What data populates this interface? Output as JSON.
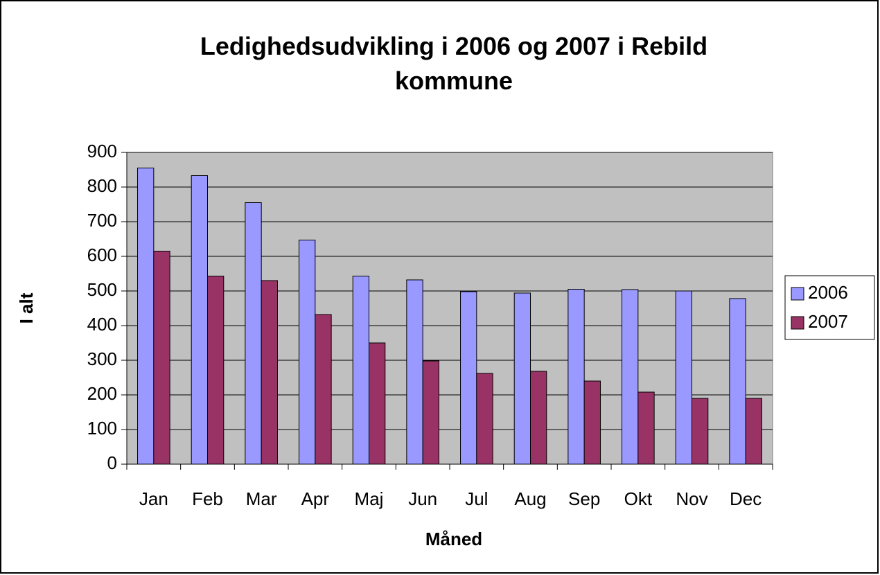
{
  "chart_data": {
    "type": "bar",
    "title": "Ledighedsudvikling i 2006 og 2007 i Rebild kommune",
    "x_label": "Måned",
    "y_label": "I alt",
    "categories": [
      "Jan",
      "Feb",
      "Mar",
      "Apr",
      "Maj",
      "Jun",
      "Jul",
      "Aug",
      "Sep",
      "Okt",
      "Nov",
      "Dec"
    ],
    "series": [
      {
        "name": "2006",
        "color": "#9999ff",
        "values": [
          855,
          833,
          755,
          647,
          543,
          532,
          498,
          494,
          505,
          504,
          500,
          478
        ]
      },
      {
        "name": "2007",
        "color": "#993366",
        "values": [
          615,
          543,
          530,
          432,
          350,
          298,
          262,
          268,
          240,
          208,
          190,
          190
        ]
      }
    ],
    "ylim": [
      0,
      900
    ],
    "yticks": [
      0,
      100,
      200,
      300,
      400,
      500,
      600,
      700,
      800,
      900
    ],
    "grid": true,
    "legend": "right",
    "plot_background": "#c0c0c0"
  }
}
